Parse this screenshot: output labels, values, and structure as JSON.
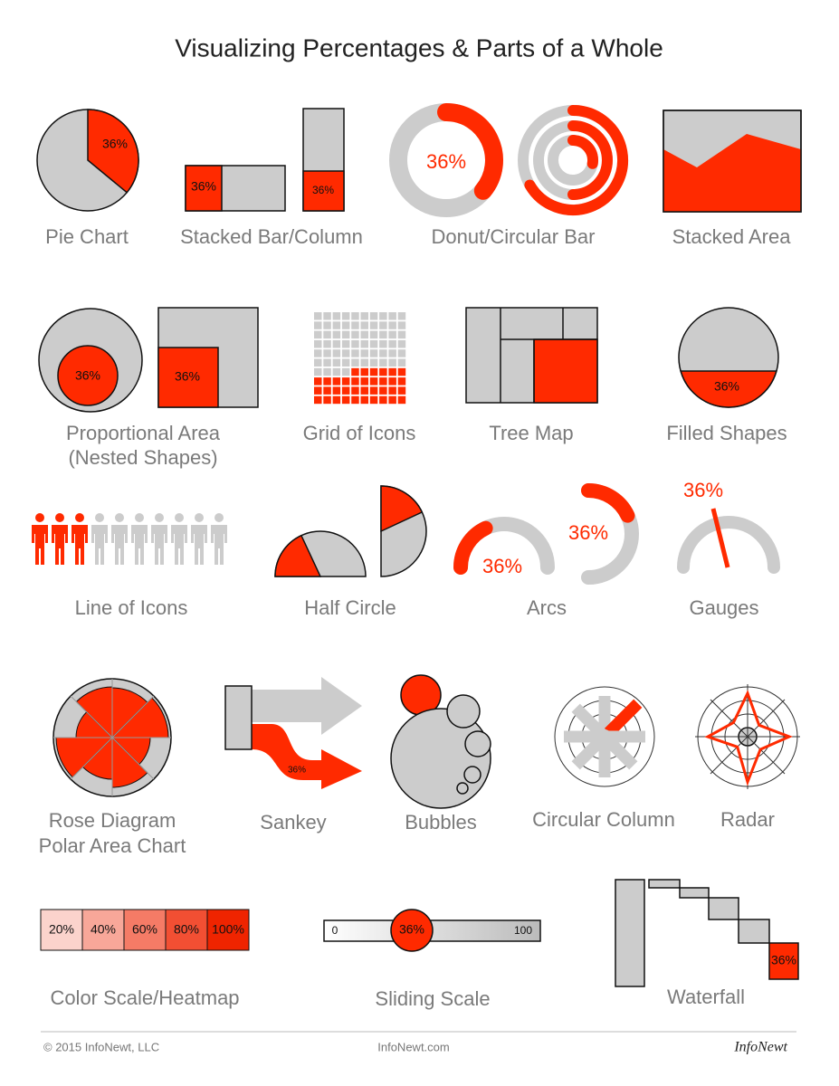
{
  "title": "Visualizing Percentages & Parts of a Whole",
  "items": [
    {
      "label": [
        "Pie Chart"
      ],
      "texts": [
        "36%"
      ]
    },
    {
      "label": [
        "Stacked Bar/Column"
      ],
      "texts": [
        "36%",
        "36%"
      ]
    },
    {
      "label": [
        "Donut/Circular Bar"
      ],
      "texts": [
        "36%"
      ]
    },
    {
      "label": [
        "Stacked Area"
      ]
    },
    {
      "label": [
        "Proportional Area",
        "(Nested Shapes)"
      ],
      "texts": [
        "36%",
        "36%"
      ]
    },
    {
      "label": [
        "Grid of Icons"
      ]
    },
    {
      "label": [
        "Tree Map"
      ]
    },
    {
      "label": [
        "Filled Shapes"
      ],
      "texts": [
        "36%"
      ]
    },
    {
      "label": [
        "Line of Icons"
      ]
    },
    {
      "label": [
        "Half Circle"
      ]
    },
    {
      "label": [
        "Arcs"
      ],
      "texts": [
        "36%",
        "36%"
      ]
    },
    {
      "label": [
        "Gauges"
      ],
      "texts": [
        "36%"
      ]
    },
    {
      "label": [
        "Rose Diagram",
        "Polar Area Chart"
      ]
    },
    {
      "label": [
        "Sankey"
      ],
      "texts": [
        "36%"
      ]
    },
    {
      "label": [
        "Bubbles"
      ]
    },
    {
      "label": [
        "Circular Column"
      ]
    },
    {
      "label": [
        "Radar"
      ]
    },
    {
      "label": [
        "Color Scale/Heatmap"
      ],
      "texts": [
        "20%",
        "40%",
        "60%",
        "80%",
        "100%"
      ]
    },
    {
      "label": [
        "Sliding Scale"
      ],
      "texts": [
        "0",
        "36%",
        "100"
      ]
    },
    {
      "label": [
        "Waterfall"
      ],
      "texts": [
        "36%"
      ]
    }
  ],
  "footer": {
    "copyright": "© 2015 InfoNewt, LLC",
    "site": "InfoNewt.com",
    "logo": "InfoNewt"
  }
}
